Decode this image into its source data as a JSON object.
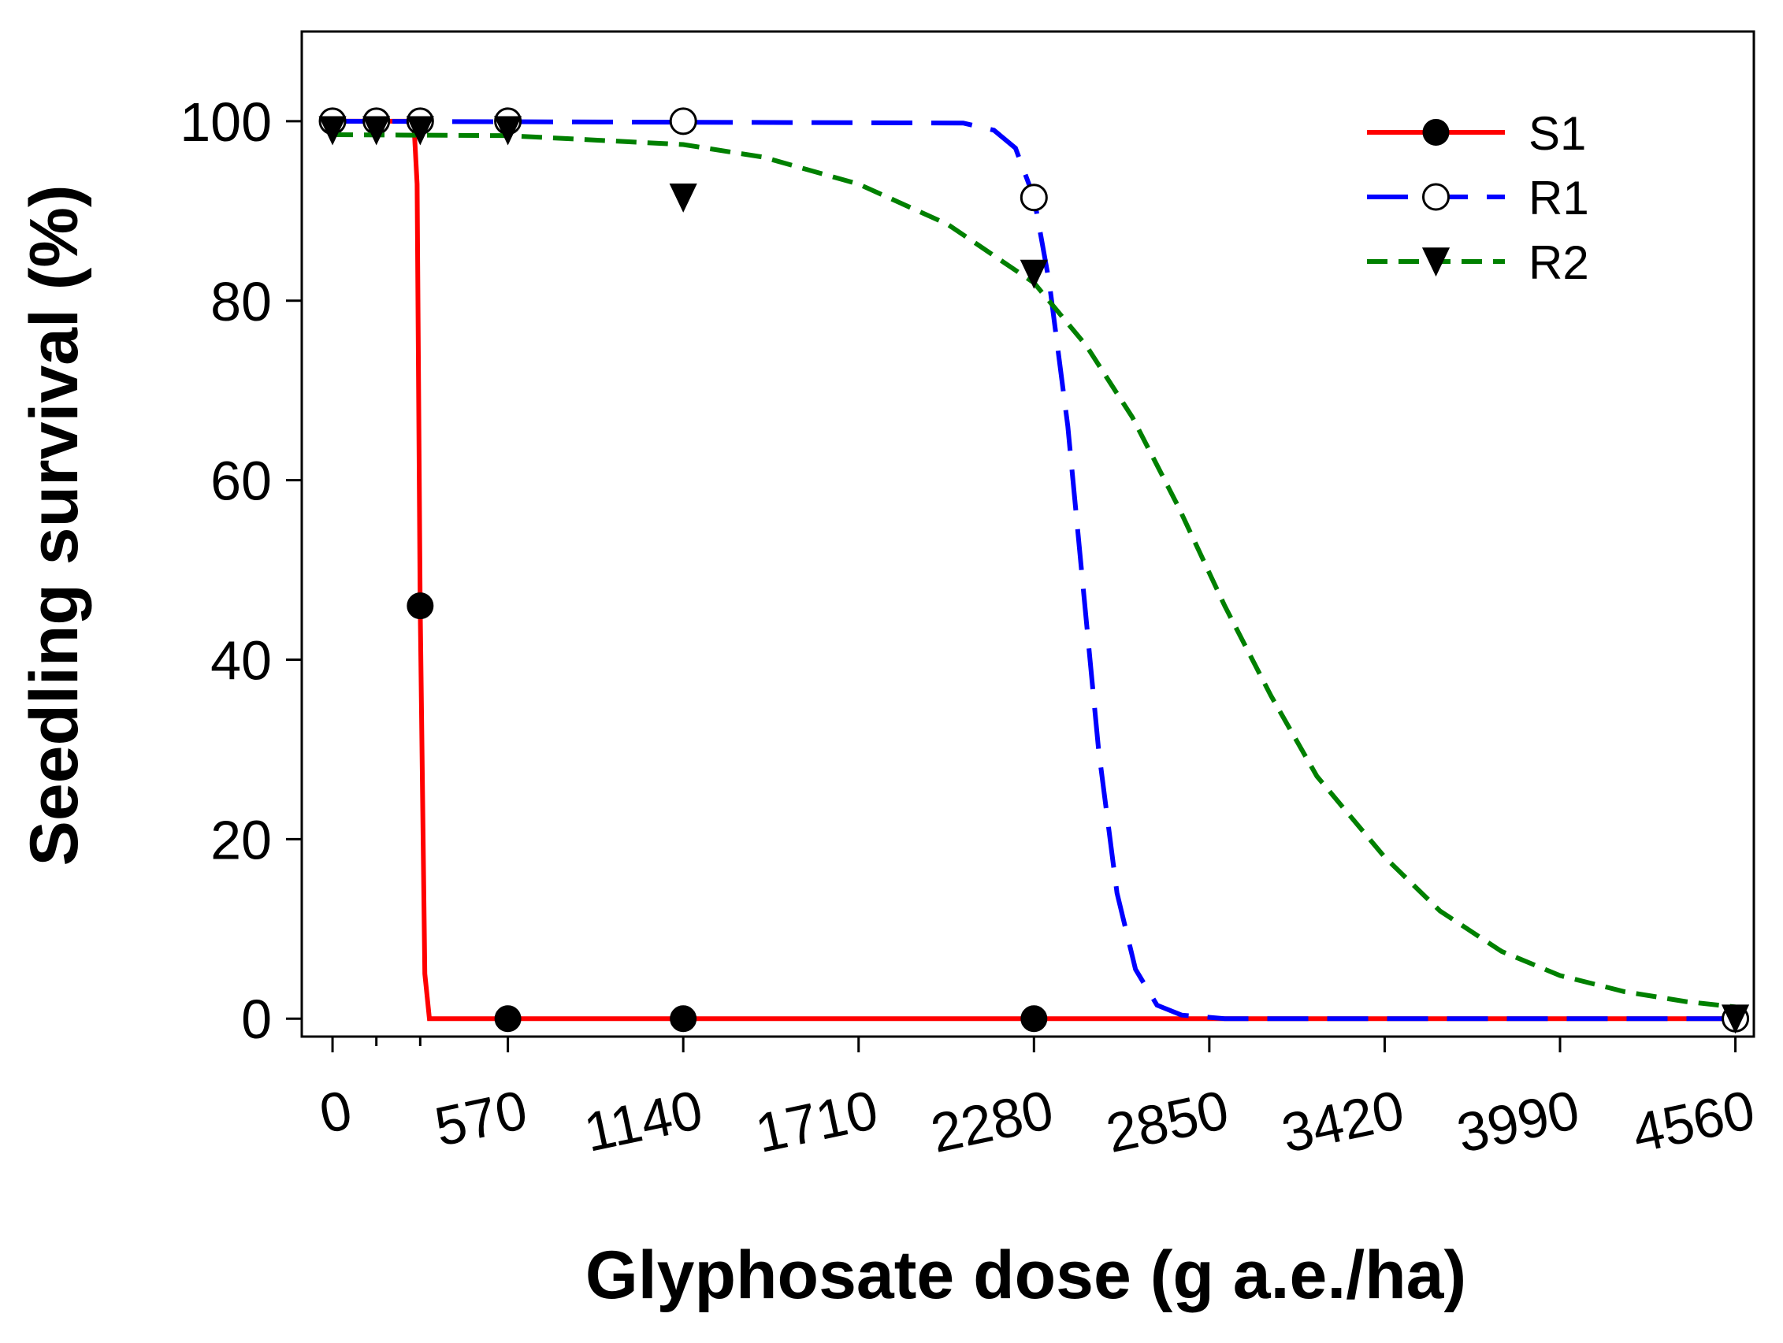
{
  "chart_data": {
    "type": "line",
    "title": "",
    "xlabel": "Glyphosate dose (g a.e./ha)",
    "ylabel": "Seedling survival (%)",
    "xlim": [
      -100,
      4620
    ],
    "ylim": [
      -2,
      110
    ],
    "x_ticks": [
      0,
      570,
      1140,
      1710,
      2280,
      2850,
      3420,
      3990,
      4560
    ],
    "x_tick_labels": [
      "0",
      "570",
      "1140",
      "1710",
      "2280",
      "2850",
      "3420",
      "3990",
      "4560"
    ],
    "x_minor_ticks": [
      142.5,
      285
    ],
    "y_ticks": [
      0,
      20,
      40,
      60,
      80,
      100
    ],
    "y_tick_labels": [
      "0",
      "20",
      "40",
      "60",
      "80",
      "100"
    ],
    "grid": false,
    "legend_position": "top-right",
    "series": [
      {
        "name": "S1",
        "color": "#ff0000",
        "line_style": "solid",
        "marker": "filled-circle",
        "points": [
          {
            "x": 0,
            "y": 100
          },
          {
            "x": 142.5,
            "y": 100
          },
          {
            "x": 285,
            "y": 100
          },
          {
            "x": 285,
            "y": 46
          },
          {
            "x": 570,
            "y": 100
          },
          {
            "x": 570,
            "y": 0
          },
          {
            "x": 1140,
            "y": 0
          },
          {
            "x": 2280,
            "y": 0
          },
          {
            "x": 4560,
            "y": 0
          }
        ],
        "fit": [
          {
            "x": 0,
            "y": 100
          },
          {
            "x": 240,
            "y": 100
          },
          {
            "x": 265,
            "y": 99.5
          },
          {
            "x": 275,
            "y": 93
          },
          {
            "x": 285,
            "y": 46
          },
          {
            "x": 300,
            "y": 5
          },
          {
            "x": 315,
            "y": 0
          },
          {
            "x": 4560,
            "y": 0
          }
        ]
      },
      {
        "name": "R1",
        "color": "#0000ff",
        "line_style": "long-dash",
        "marker": "open-circle",
        "points": [
          {
            "x": 0,
            "y": 100
          },
          {
            "x": 142.5,
            "y": 100
          },
          {
            "x": 285,
            "y": 100
          },
          {
            "x": 570,
            "y": 100
          },
          {
            "x": 1140,
            "y": 100
          },
          {
            "x": 2280,
            "y": 91.5
          },
          {
            "x": 4560,
            "y": 0
          }
        ],
        "fit": [
          {
            "x": 0,
            "y": 100
          },
          {
            "x": 2050,
            "y": 99.8
          },
          {
            "x": 2150,
            "y": 99
          },
          {
            "x": 2220,
            "y": 97
          },
          {
            "x": 2280,
            "y": 91.5
          },
          {
            "x": 2330,
            "y": 82
          },
          {
            "x": 2390,
            "y": 66
          },
          {
            "x": 2440,
            "y": 48
          },
          {
            "x": 2490,
            "y": 30
          },
          {
            "x": 2550,
            "y": 14
          },
          {
            "x": 2610,
            "y": 5.5
          },
          {
            "x": 2680,
            "y": 1.5
          },
          {
            "x": 2760,
            "y": 0.4
          },
          {
            "x": 2900,
            "y": 0
          },
          {
            "x": 4560,
            "y": 0
          }
        ]
      },
      {
        "name": "R2",
        "color": "#008000",
        "line_style": "short-dash",
        "marker": "filled-triangle-down",
        "points": [
          {
            "x": 0,
            "y": 99
          },
          {
            "x": 142.5,
            "y": 99
          },
          {
            "x": 285,
            "y": 99
          },
          {
            "x": 570,
            "y": 99
          },
          {
            "x": 1140,
            "y": 91.5
          },
          {
            "x": 2280,
            "y": 83
          },
          {
            "x": 4560,
            "y": 0
          }
        ],
        "fit": [
          {
            "x": 0,
            "y": 98.5
          },
          {
            "x": 570,
            "y": 98.4
          },
          {
            "x": 1140,
            "y": 97.4
          },
          {
            "x": 1400,
            "y": 96
          },
          {
            "x": 1710,
            "y": 93
          },
          {
            "x": 2000,
            "y": 88.5
          },
          {
            "x": 2280,
            "y": 82
          },
          {
            "x": 2450,
            "y": 75
          },
          {
            "x": 2600,
            "y": 67
          },
          {
            "x": 2750,
            "y": 57
          },
          {
            "x": 2900,
            "y": 46
          },
          {
            "x": 3050,
            "y": 36
          },
          {
            "x": 3200,
            "y": 27
          },
          {
            "x": 3420,
            "y": 18
          },
          {
            "x": 3600,
            "y": 12
          },
          {
            "x": 3800,
            "y": 7.5
          },
          {
            "x": 3990,
            "y": 4.8
          },
          {
            "x": 4200,
            "y": 3
          },
          {
            "x": 4400,
            "y": 1.9
          },
          {
            "x": 4560,
            "y": 1.3
          }
        ]
      }
    ]
  }
}
